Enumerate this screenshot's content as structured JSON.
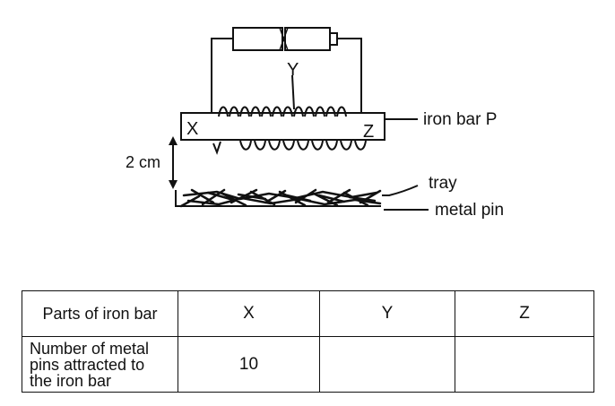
{
  "diagram": {
    "labels": {
      "coil_midpoint": "Y",
      "end_left": "X",
      "end_right": "Z",
      "iron_bar": "iron bar P",
      "distance": "2 cm",
      "tray": "tray",
      "pin": "metal pin"
    }
  },
  "table": {
    "header": [
      "Parts of iron bar",
      "X",
      "Y",
      "Z"
    ],
    "row_label_lines": [
      "Number of metal",
      "pins attracted to",
      "the iron bar"
    ],
    "values": [
      "10",
      "",
      ""
    ]
  }
}
